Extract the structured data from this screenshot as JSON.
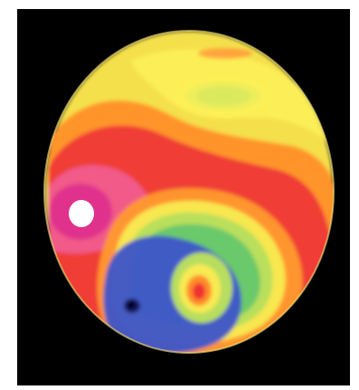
{
  "figure": {
    "background_color": "#000000",
    "palette": {
      "white": "#ffffff",
      "magenta": "#e0308e",
      "pink": "#f15f8d",
      "red": "#ef2f2f",
      "orange": "#ff8a2a",
      "yellow": "#f7e84f",
      "light_green": "#b7de5f",
      "green": "#6cc86a",
      "blue": "#3f56c8",
      "navy": "#13145a"
    }
  }
}
